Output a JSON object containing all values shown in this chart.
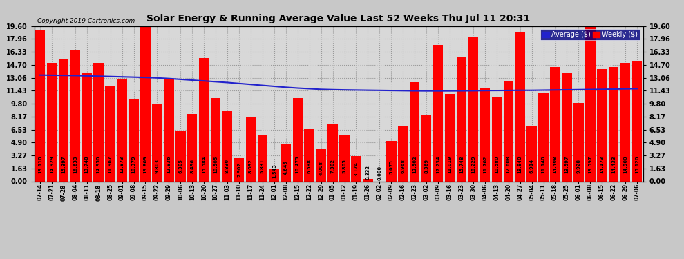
{
  "title": "Solar Energy & Running Average Value Last 52 Weeks Thu Jul 11 20:31",
  "copyright": "Copyright 2019 Cartronics.com",
  "bar_color": "#FF0000",
  "avg_line_color": "#2222CC",
  "background_color": "#D8D8D8",
  "grid_color": "#AAAAAA",
  "ylim": [
    0,
    19.6
  ],
  "yticks": [
    0.0,
    1.63,
    3.27,
    4.9,
    6.53,
    8.17,
    9.8,
    11.43,
    13.06,
    14.7,
    16.33,
    17.96,
    19.6
  ],
  "legend_avg_color": "#2222CC",
  "legend_weekly_color": "#FF0000",
  "dates": [
    "07-14",
    "07-21",
    "07-28",
    "08-04",
    "08-11",
    "08-18",
    "08-25",
    "09-01",
    "09-08",
    "09-15",
    "09-22",
    "09-29",
    "10-06",
    "10-13",
    "10-20",
    "10-27",
    "11-03",
    "11-10",
    "11-17",
    "11-24",
    "12-01",
    "12-08",
    "12-15",
    "12-22",
    "12-29",
    "01-05",
    "01-12",
    "01-19",
    "01-26",
    "02-02",
    "02-09",
    "02-16",
    "02-23",
    "03-02",
    "03-09",
    "03-16",
    "03-23",
    "03-30",
    "04-06",
    "04-13",
    "04-20",
    "04-27",
    "05-04",
    "05-11",
    "05-18",
    "05-25",
    "06-01",
    "06-08",
    "06-15",
    "06-22",
    "06-29",
    "07-06"
  ],
  "weekly_values": [
    19.11,
    14.929,
    15.397,
    16.633,
    13.748,
    14.95,
    11.967,
    12.873,
    10.379,
    19.809,
    9.803,
    12.836,
    6.305,
    8.496,
    15.584,
    10.505,
    8.83,
    2.902,
    8.032,
    5.831,
    1.543,
    4.645,
    10.475,
    6.588,
    4.008,
    7.302,
    5.805,
    3.174,
    0.332,
    0.0,
    5.075,
    6.968,
    12.502,
    8.369,
    17.234,
    11.019,
    15.748,
    18.229,
    11.702,
    10.58,
    12.608,
    18.84,
    6.914,
    11.14,
    14.408,
    13.597,
    9.928,
    19.597,
    14.173,
    14.433,
    14.9,
    15.12
  ],
  "avg_values": [
    13.4,
    13.38,
    13.36,
    13.34,
    13.3,
    13.26,
    13.22,
    13.18,
    13.14,
    13.1,
    13.04,
    12.96,
    12.86,
    12.76,
    12.66,
    12.56,
    12.46,
    12.34,
    12.22,
    12.1,
    11.98,
    11.86,
    11.76,
    11.68,
    11.6,
    11.56,
    11.53,
    11.51,
    11.49,
    11.47,
    11.45,
    11.43,
    11.41,
    11.4,
    11.4,
    11.4,
    11.41,
    11.42,
    11.44,
    11.45,
    11.46,
    11.48,
    11.48,
    11.5,
    11.52,
    11.54,
    11.56,
    11.58,
    11.6,
    11.63,
    11.66,
    11.68
  ]
}
